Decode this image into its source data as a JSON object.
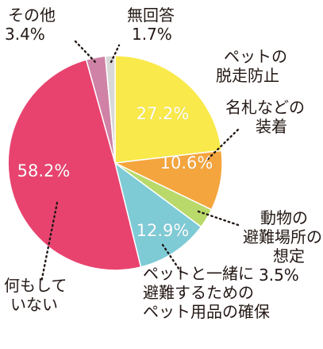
{
  "chart_data": {
    "type": "pie",
    "title": "",
    "slices": [
      {
        "label_lines": [
          "ペットの",
          "脱走防止"
        ],
        "value": 27.2,
        "value_label": "27.2%",
        "color": "#f9e94a"
      },
      {
        "label_lines": [
          "名札などの",
          "装着"
        ],
        "value": 10.6,
        "value_label": "10.6%",
        "color": "#f5a53d"
      },
      {
        "label_lines": [
          "動物の",
          "避難場所の",
          "想定"
        ],
        "value": 3.5,
        "value_label": "3.5%",
        "color": "#b9d96a"
      },
      {
        "label_lines": [
          "ペットと一緒に",
          "避難するための",
          "ペット用品の確保"
        ],
        "value": 12.9,
        "value_label": "12.9%",
        "color": "#7ecbd6"
      },
      {
        "label_lines": [
          "何もして",
          "いない"
        ],
        "value": 58.2,
        "value_label": "58.2%",
        "color": "#e8436f"
      },
      {
        "label_lines": [
          "その他"
        ],
        "value": 3.4,
        "value_label": "3.4%",
        "color": "#cf82a6"
      },
      {
        "label_lines": [
          "無回答"
        ],
        "value": 1.7,
        "value_label": "1.7%",
        "color": "#d8d8d8"
      }
    ]
  }
}
